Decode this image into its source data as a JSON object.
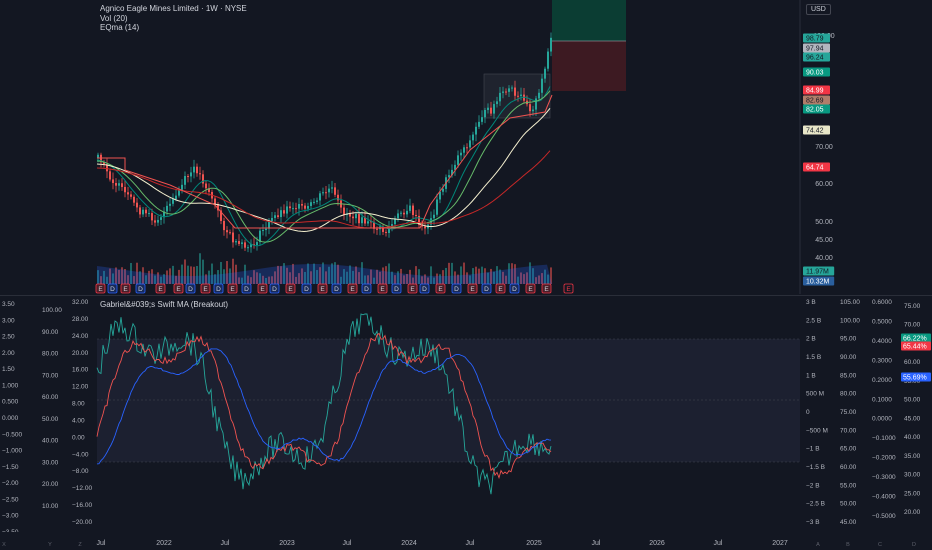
{
  "legend": {
    "title": "Agnico Eagle Mines Limited · 1W · NYSE",
    "vol": "Vol (20)",
    "ema": "EQma (14)"
  },
  "usd_button": "USD",
  "price_axis": {
    "ticks": [
      "100.00",
      "70.00",
      "60.00",
      "50.00",
      "45.00",
      "40.00"
    ],
    "tags": [
      {
        "text": "98.79",
        "bg": "#26a69a",
        "fg": "#131722"
      },
      {
        "text": "97.94",
        "bg": "#b2b5be",
        "fg": "#131722"
      },
      {
        "text": "96.24",
        "bg": "#26a69a",
        "fg": "#131722"
      },
      {
        "text": "90.03",
        "bg": "#089981",
        "fg": "#ffffff"
      },
      {
        "text": "84.99",
        "bg": "#f23645",
        "fg": "#ffffff"
      },
      {
        "text": "82.69",
        "bg": "#b07d6a",
        "fg": "#131722"
      },
      {
        "text": "82.05",
        "bg": "#089981",
        "fg": "#ffffff"
      },
      {
        "text": "74.42",
        "bg": "#e8e6c8",
        "fg": "#131722"
      },
      {
        "text": "64.74",
        "bg": "#f23645",
        "fg": "#ffffff"
      },
      {
        "text": "11.97M",
        "bg": "#26a69a",
        "fg": "#131722"
      },
      {
        "text": "10.32M",
        "bg": "#2a5f9e",
        "fg": "#ffffff"
      }
    ]
  },
  "indicator": {
    "name": "Gabriel&#039;s Swift MA (Breakout)",
    "left_axis_1": [
      "3.50",
      "3.00",
      "2.50",
      "2.00",
      "1.50",
      "1.000",
      "0.500",
      "0.000",
      "−0.500",
      "−1.000",
      "−1.50",
      "−2.00",
      "−2.50",
      "−3.00",
      "−3.50"
    ],
    "left_axis_2": [
      "100.00",
      "90.00",
      "80.00",
      "70.00",
      "60.00",
      "50.00",
      "40.00",
      "30.00",
      "20.00",
      "10.00"
    ],
    "left_axis_3": [
      "32.00",
      "28.00",
      "24.00",
      "20.00",
      "16.00",
      "12.00",
      "8.00",
      "4.00",
      "0.00",
      "−4.00",
      "−8.00",
      "−12.00",
      "−16.00",
      "−20.00"
    ],
    "right_axis_1": [
      "3 B",
      "2.5 B",
      "2 B",
      "1.5 B",
      "1 B",
      "500 M",
      "0",
      "−500 M",
      "−1 B",
      "−1.5 B",
      "−2 B",
      "−2.5 B",
      "−3 B"
    ],
    "right_axis_2": [
      "105.00",
      "100.00",
      "95.00",
      "90.00",
      "85.00",
      "80.00",
      "75.00",
      "70.00",
      "65.00",
      "60.00",
      "55.00",
      "50.00",
      "45.00"
    ],
    "right_axis_3": [
      "0.6000",
      "0.5000",
      "0.4000",
      "0.3000",
      "0.2000",
      "0.1000",
      "0.0000",
      "−0.1000",
      "−0.2000",
      "−0.3000",
      "−0.4000",
      "−0.5000"
    ],
    "right_axis_4": [
      "75.00",
      "70.00",
      "65.00",
      "60.00",
      "55.00",
      "50.00",
      "45.00",
      "40.00",
      "35.00",
      "30.00",
      "25.00",
      "20.00"
    ],
    "tags": [
      {
        "text": "66.22%",
        "bg": "#089981",
        "fg": "#ffffff"
      },
      {
        "text": "65.44%",
        "bg": "#f23645",
        "fg": "#ffffff"
      },
      {
        "text": "55.69%",
        "bg": "#2962ff",
        "fg": "#ffffff"
      }
    ]
  },
  "time_axis": [
    "Jul",
    "2022",
    "Jul",
    "2023",
    "Jul",
    "2024",
    "Jul",
    "2025",
    "Jul",
    "2026",
    "Jul",
    "2027"
  ],
  "corner_icons": [
    "X",
    "Y",
    "Z",
    "A",
    "B",
    "C",
    "D"
  ],
  "earnings_marker": "E",
  "dividend_marker": "D",
  "colors": {
    "bg": "#131722",
    "up": "#26a69a",
    "down": "#ef5350",
    "ema_green": "#43a047",
    "ema_red": "#e53935",
    "ema_beige": "#f5f0d0",
    "ind_green": "#26a69a",
    "ind_red": "#ef5350",
    "ind_blue": "#2962ff"
  }
}
